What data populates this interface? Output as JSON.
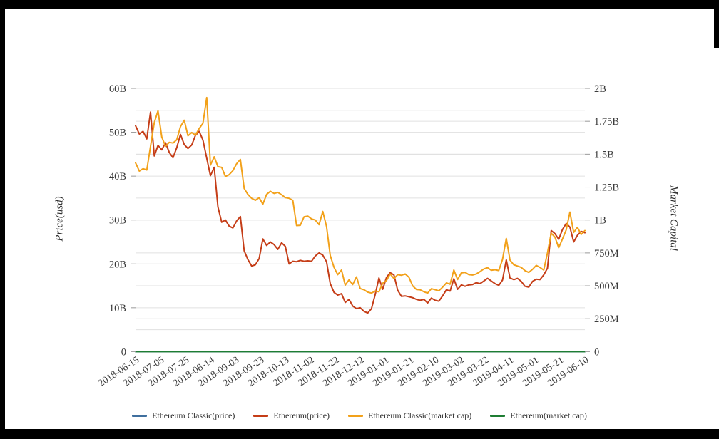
{
  "chart_data": {
    "type": "line",
    "title": "",
    "legend_position": "bottom",
    "grid": true,
    "grid_color": "#e0e0e0",
    "tick_color": "#999999",
    "label_color": "#3b3b3b",
    "x_axis": {
      "tick_labels": [
        "2018-06-15",
        "2018-07-05",
        "2018-07-25",
        "2018-08-14",
        "2018-09-03",
        "2018-09-23",
        "2018-10-13",
        "2018-11-02",
        "2018-11-22",
        "2018-12-12",
        "2019-01-01",
        "2019-01-21",
        "2019-02-10",
        "2019-03-02",
        "2019-03-22",
        "2019-04-11",
        "2019-05-01",
        "2019-05-21",
        "2019-06-10"
      ],
      "days_per_tick": 20,
      "total_days": 360,
      "label_angle_deg": -33
    },
    "left_axis": {
      "title": "Price(usd)",
      "unit": "B",
      "min": 0,
      "max": 60,
      "minor_grid_step": 5,
      "ticks": [
        {
          "label": "60B",
          "value": 60
        },
        {
          "label": "50B",
          "value": 50
        },
        {
          "label": "40B",
          "value": 40
        },
        {
          "label": "30B",
          "value": 30
        },
        {
          "label": "20B",
          "value": 20
        },
        {
          "label": "10B",
          "value": 10
        },
        {
          "label": "0",
          "value": 0
        }
      ]
    },
    "right_axis": {
      "title": "Market Capital",
      "unit": "M",
      "min": 0,
      "max": 2000,
      "grid_step": 250,
      "ticks": [
        {
          "label": "2B",
          "value": 2000
        },
        {
          "label": "1.75B",
          "value": 1750
        },
        {
          "label": "1.5B",
          "value": 1500
        },
        {
          "label": "1.25B",
          "value": 1250
        },
        {
          "label": "1B",
          "value": 1000
        },
        {
          "label": "750M",
          "value": 750
        },
        {
          "label": "500M",
          "value": 500
        },
        {
          "label": "250M",
          "value": 250
        },
        {
          "label": "0",
          "value": 0
        }
      ]
    },
    "series": [
      {
        "name": "Ethereum Classic(price)",
        "color": "#3f6f9e",
        "axis": "left",
        "constant": 0
      },
      {
        "name": "Ethereum(price)",
        "color": "#c53d17",
        "axis": "left",
        "day_step": 3,
        "values": [
          51.5,
          49.6,
          50.2,
          48.5,
          54.6,
          44.6,
          47,
          46,
          47.6,
          45.4,
          44.2,
          46.5,
          49.5,
          47.2,
          46.3,
          47.1,
          49.3,
          50.2,
          48.2,
          44.1,
          40.1,
          42,
          33,
          29.5,
          30,
          28.6,
          28.2,
          29.8,
          30.8,
          23,
          21,
          19.5,
          19.8,
          21.2,
          25.7,
          24.2,
          25,
          24.4,
          23.3,
          24.8,
          24,
          20,
          20.6,
          20.5,
          20.8,
          20.6,
          20.7,
          20.6,
          21.8,
          22.5,
          22,
          20.5,
          15.5,
          13.5,
          12.9,
          13.2,
          11.2,
          11.9,
          10.4,
          9.8,
          10,
          9.2,
          8.8,
          9.8,
          13,
          16.8,
          14.2,
          16.9,
          18,
          17.5,
          14,
          12.6,
          12.7,
          12.5,
          12.3,
          11.9,
          11.7,
          11.9,
          11.1,
          12.2,
          11.7,
          11.5,
          12.7,
          14.1,
          13.8,
          16.6,
          14.2,
          15.2,
          14.9,
          15.2,
          15.3,
          15.7,
          15.5,
          16.1,
          16.7,
          16.1,
          15.5,
          15.1,
          16.3,
          20.9,
          16.8,
          16.4,
          16.7,
          16,
          14.9,
          14.7,
          16,
          16.5,
          16.4,
          17.5,
          19,
          27.6,
          26.9,
          25.6,
          27.8,
          29.2,
          28.4,
          25,
          26.5,
          27.4,
          27.1
        ]
      },
      {
        "name": "Ethereum Classic(market cap)",
        "color": "#f2a11a",
        "axis": "right",
        "day_step": 3,
        "values": [
          1435,
          1372,
          1390,
          1380,
          1560,
          1740,
          1830,
          1630,
          1560,
          1590,
          1585,
          1610,
          1710,
          1758,
          1640,
          1665,
          1645,
          1695,
          1735,
          1930,
          1417,
          1480,
          1405,
          1400,
          1330,
          1345,
          1375,
          1428,
          1460,
          1240,
          1195,
          1165,
          1150,
          1170,
          1120,
          1195,
          1218,
          1202,
          1210,
          1192,
          1170,
          1165,
          1150,
          958,
          960,
          1025,
          1030,
          1008,
          1000,
          965,
          1065,
          950,
          730,
          640,
          585,
          620,
          505,
          545,
          510,
          568,
          479,
          470,
          452,
          445,
          460,
          455,
          520,
          540,
          590,
          555,
          585,
          580,
          590,
          565,
          500,
          472,
          470,
          455,
          445,
          478,
          470,
          462,
          490,
          522,
          512,
          620,
          548,
          598,
          602,
          585,
          582,
          590,
          608,
          628,
          638,
          618,
          622,
          616,
          700,
          860,
          695,
          660,
          650,
          640,
          615,
          602,
          625,
          655,
          640,
          620,
          750,
          900,
          870,
          790,
          855,
          925,
          1060,
          905,
          945,
          890,
          920
        ]
      },
      {
        "name": "Ethereum(market cap)",
        "color": "#1e7d33",
        "axis": "left",
        "constant": 0
      }
    ]
  }
}
